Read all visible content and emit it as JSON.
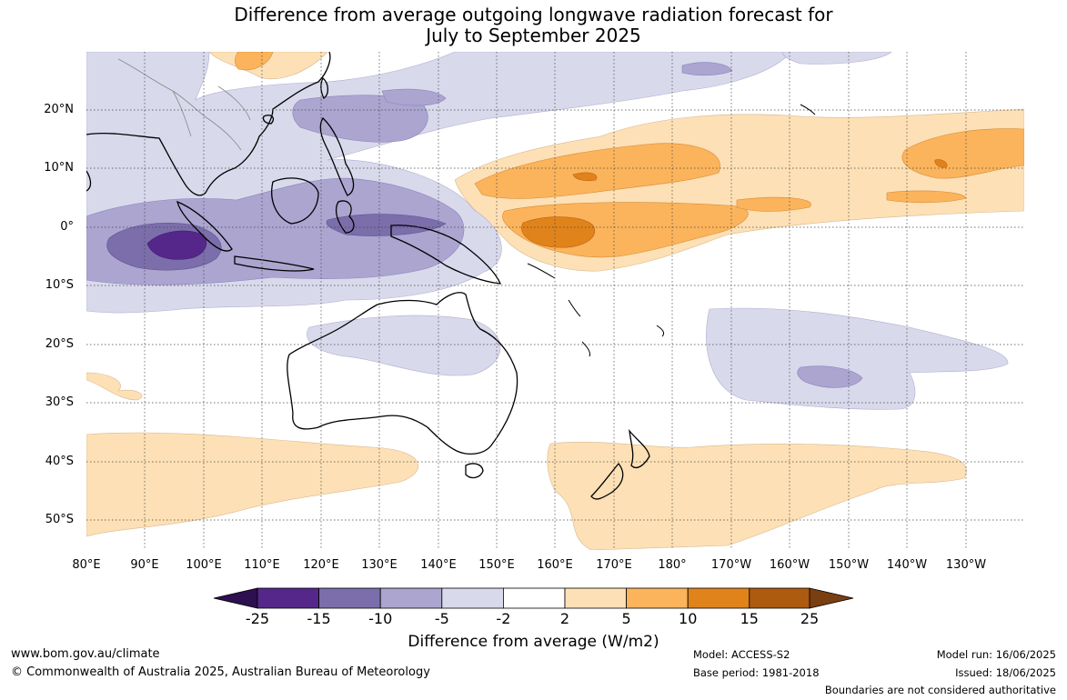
{
  "title": {
    "line1": "Difference from average outgoing longwave radiation forecast for",
    "line2": "July to September 2025"
  },
  "map": {
    "region": "Indo-Pacific",
    "latitude_labels": [
      "20°N",
      "10°N",
      "0°",
      "10°S",
      "20°S",
      "30°S",
      "40°S",
      "50°S"
    ],
    "longitude_labels": [
      "80°E",
      "90°E",
      "100°E",
      "110°E",
      "120°E",
      "130°E",
      "140°E",
      "150°E",
      "160°E",
      "170°E",
      "180°",
      "170°W",
      "160°W",
      "150°W",
      "140°W",
      "130°W"
    ],
    "features": [
      {
        "name": "Eastern Indian Ocean negative anomaly",
        "value": "-25 to -15"
      },
      {
        "name": "Maritime Continent negative anomaly",
        "value": "-10 to -5"
      },
      {
        "name": "Western Pacific equatorial positive anomaly",
        "value": "10 to 15"
      },
      {
        "name": "Southern mid-latitude positive anomaly",
        "value": "2 to 5"
      }
    ]
  },
  "colorbar": {
    "labels": [
      "-25",
      "-15",
      "-10",
      "-5",
      "-2",
      "2",
      "5",
      "10",
      "15",
      "25"
    ],
    "colors": [
      "#2d1050",
      "#55278a",
      "#7b6eab",
      "#aba5d0",
      "#d9d9ec",
      "#ffffff",
      "#fde0b5",
      "#fbb45b",
      "#e1831b",
      "#ad5b10",
      "#7a3e10"
    ],
    "title": "Difference from average (W/m2)"
  },
  "footer": {
    "url": "www.bom.gov.au/climate",
    "copyright": "© Commonwealth of Australia 2025, Australian Bureau of Meteorology",
    "model": "Model: ACCESS-S2",
    "base_period": "Base period: 1981-2018",
    "model_run": "Model run: 16/06/2025",
    "issued": "Issued: 18/06/2025",
    "disclaimer": "Boundaries are not considered authoritative"
  }
}
